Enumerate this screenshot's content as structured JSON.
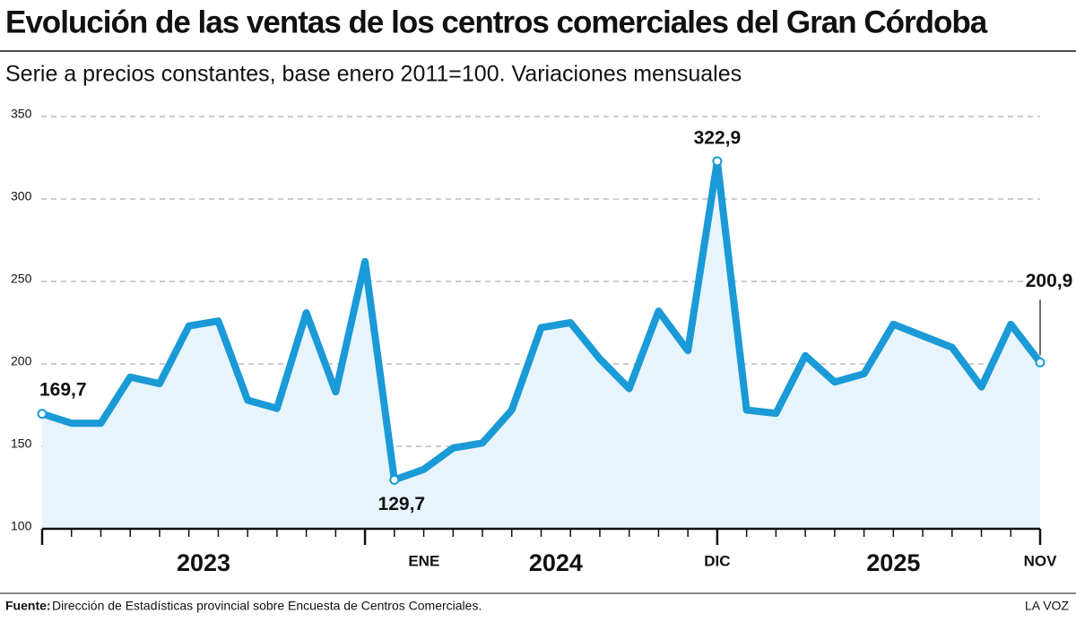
{
  "chart_data": {
    "type": "line",
    "title": "Evolución de las ventas de los centros comerciales del Gran Córdoba",
    "subtitle": "Serie a precios constantes, base enero 2011=100. Variaciones mensuales",
    "categories": [
      null,
      null,
      null,
      null,
      null,
      null,
      null,
      null,
      null,
      null,
      null,
      null,
      "ENE",
      null,
      null,
      null,
      null,
      null,
      null,
      null,
      null,
      null,
      null,
      "DIC",
      null,
      null,
      null,
      null,
      null,
      null,
      null,
      null,
      null,
      null,
      "NOV"
    ],
    "x_groups": [
      "2023",
      "2024",
      "2025"
    ],
    "series": [
      {
        "color": "#1a9ad6",
        "values": [
          169.7,
          164,
          164,
          192,
          188,
          223,
          226,
          178,
          173,
          231,
          183,
          262,
          129.7,
          136,
          149,
          152,
          172,
          222,
          225,
          203,
          185,
          232,
          208,
          322.9,
          172,
          170,
          205,
          189,
          194,
          224,
          217,
          210,
          186,
          224,
          200.9
        ],
        "value_labels": [
          "169,7",
          null,
          null,
          null,
          null,
          null,
          null,
          null,
          null,
          null,
          null,
          null,
          "129,7",
          null,
          null,
          null,
          null,
          null,
          null,
          null,
          null,
          null,
          null,
          "322,9",
          null,
          null,
          null,
          null,
          null,
          null,
          null,
          null,
          null,
          null,
          "200,9"
        ]
      }
    ],
    "ylim": [
      100,
      350
    ],
    "yticks": [
      100,
      150,
      200,
      250,
      300,
      350
    ],
    "grid": true,
    "source_label": "Fuente:",
    "source": "Dirección de Estadísticas provincial sobre Encuesta de Centros Comerciales.",
    "credit": "LA VOZ"
  }
}
